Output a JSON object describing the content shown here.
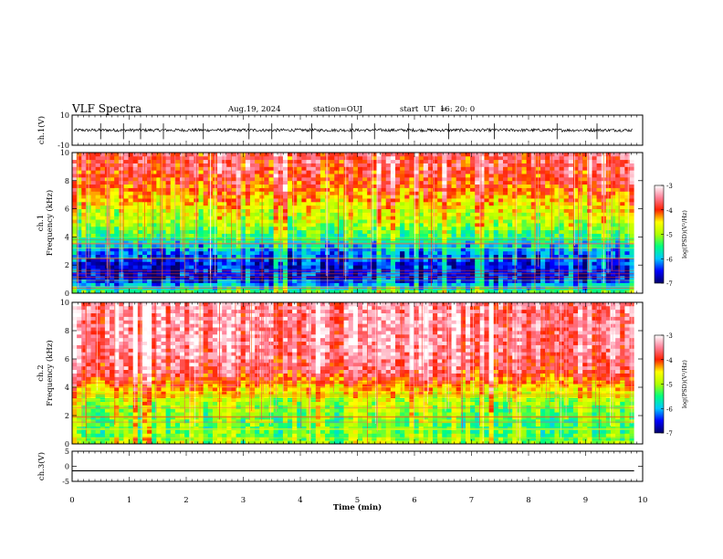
{
  "header": {
    "title": "VLF Spectra",
    "date": "Aug.19, 2024",
    "station": "station=OUJ",
    "start_label": "start  UT  =",
    "start_time": "16: 20: 0"
  },
  "colorbar": {
    "label": "log(PSD)(V²/Hz)",
    "ticks": [
      "-3",
      "-4",
      "-5",
      "-6",
      "-7"
    ],
    "colormap": [
      "#00006a",
      "#0000ff",
      "#00c8ff",
      "#00ff80",
      "#b0ff00",
      "#ffff00",
      "#ff2000",
      "#ff8098",
      "#ffffff"
    ]
  },
  "chart_data": [
    {
      "type": "line",
      "panel": "ch1-waveform",
      "ylabel": "ch.1(V)",
      "ylim": [
        -10,
        10
      ],
      "yticks": [
        "10",
        "-10"
      ],
      "xlim": [
        0,
        10
      ],
      "baseline": 0,
      "noise_amplitude_V": 1,
      "spike_times_min": [
        0.5,
        0.9,
        1.2,
        1.6,
        2.3,
        3.1,
        3.5,
        4.2,
        4.9,
        5.3,
        5.9,
        6.6,
        7.4,
        8.5,
        9.2
      ]
    },
    {
      "type": "heatmap",
      "panel": "ch1-spectrogram",
      "ylabel": "ch.1\nFrequency (kHz)",
      "ylim": [
        0,
        10
      ],
      "yticks": [
        "0",
        "2",
        "4",
        "6",
        "8",
        "10"
      ],
      "xlim": [
        0,
        9.85
      ],
      "zlim": [
        -7,
        -3
      ],
      "frequency_kHz": [
        0,
        1,
        2,
        3,
        4,
        5,
        6,
        7,
        8,
        9,
        10
      ],
      "log_psd": [
        -5.2,
        -6.6,
        -6.6,
        -6.2,
        -5.5,
        -5.0,
        -4.7,
        -4.3,
        -4.0,
        -3.8,
        -3.8
      ]
    },
    {
      "type": "heatmap",
      "panel": "ch2-spectrogram",
      "ylabel": "ch.2\nFrequency (kHz)",
      "ylim": [
        0,
        10
      ],
      "yticks": [
        "0",
        "2",
        "4",
        "6",
        "8",
        "10"
      ],
      "xlim": [
        0,
        9.85
      ],
      "zlim": [
        -7,
        -3
      ],
      "frequency_kHz": [
        0,
        1,
        2,
        3,
        4,
        5,
        6,
        7,
        8,
        9,
        10
      ],
      "log_psd": [
        -5.0,
        -5.3,
        -5.2,
        -5.0,
        -4.4,
        -3.8,
        -3.6,
        -3.5,
        -3.5,
        -3.5,
        -3.5
      ]
    },
    {
      "type": "line",
      "panel": "ch3-waveform",
      "ylabel": "ch.3(V)",
      "ylim": [
        -5,
        5
      ],
      "yticks": [
        "5",
        "0",
        "-5"
      ],
      "xlim": [
        0,
        10
      ],
      "x": [
        0,
        9.85
      ],
      "y": [
        -1.5,
        -1.5
      ],
      "xlabel": "Time  (min)",
      "xticks": [
        "0",
        "1",
        "2",
        "3",
        "4",
        "5",
        "6",
        "7",
        "8",
        "9",
        "10"
      ]
    }
  ]
}
